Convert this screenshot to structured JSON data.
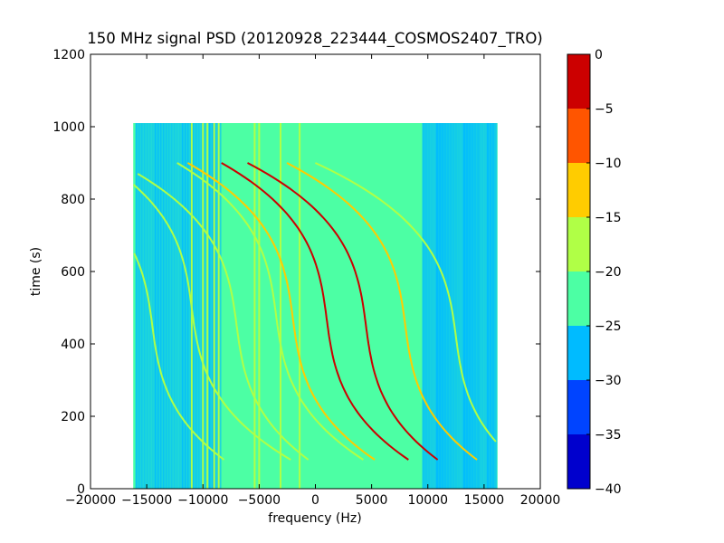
{
  "chart_data": {
    "type": "heatmap",
    "title": "150 MHz signal PSD (20120928_223444_COSMOS2407_TRO)",
    "xlabel": "frequency (Hz)",
    "ylabel": "time (s)",
    "xlim": [
      -20000,
      20000
    ],
    "ylim": [
      0,
      1200
    ],
    "xticks": [
      -20000,
      -15000,
      -10000,
      -5000,
      0,
      5000,
      10000,
      15000,
      20000
    ],
    "xtick_labels": [
      "−20000",
      "−15000",
      "−10000",
      "−5000",
      "0",
      "5000",
      "10000",
      "15000",
      "20000"
    ],
    "yticks": [
      0,
      200,
      400,
      600,
      800,
      1000,
      1200
    ],
    "ytick_labels": [
      "0",
      "200",
      "400",
      "600",
      "800",
      "1000",
      "1200"
    ],
    "data_extent": {
      "freq": [
        -16200,
        16200
      ],
      "time": [
        0,
        1010
      ]
    },
    "background_level": -22.5,
    "colorbar": {
      "levels": [
        -40,
        -35,
        -30,
        -25,
        -20,
        -15,
        -10,
        -5,
        0
      ],
      "tick_labels": [
        "−40",
        "−35",
        "−30",
        "−25",
        "−20",
        "−15",
        "−10",
        "−5",
        "0"
      ],
      "colors": [
        "#0000cd",
        "#0044ff",
        "#00bbff",
        "#4cffa4",
        "#b0ff46",
        "#ffcc00",
        "#ff5500",
        "#cc0000"
      ]
    },
    "noise_bands": [
      {
        "freq": [
          -16000,
          -8500
        ],
        "level": -27.5
      },
      {
        "freq": [
          9500,
          14500
        ],
        "level": -27.5
      },
      {
        "freq": [
          14500,
          16000
        ],
        "level": -27.5
      }
    ],
    "vertical_lines": [
      {
        "freq": -11000,
        "level": -17.5
      },
      {
        "freq": -10000,
        "level": -17.5
      },
      {
        "freq": -9600,
        "level": -17.5
      },
      {
        "freq": -9000,
        "level": -17.5
      },
      {
        "freq": -8600,
        "level": -17.5
      },
      {
        "freq": -5400,
        "level": -17.5
      },
      {
        "freq": -5000,
        "level": -17.5
      },
      {
        "freq": -3100,
        "level": -17.5
      },
      {
        "freq": -1400,
        "level": -17.5
      }
    ],
    "tracks": [
      {
        "center_freq": -14500,
        "center_time": 450,
        "level": -17.5
      },
      {
        "center_freq": -11000,
        "center_time": 500,
        "level": -17.5
      },
      {
        "center_freq": -7000,
        "center_time": 450,
        "level": -17.5
      },
      {
        "center_freq": -3500,
        "center_time": 480,
        "level": -17.5
      },
      {
        "center_freq": -2000,
        "center_time": 470,
        "level": -12.5
      },
      {
        "center_freq": 1000,
        "center_time": 470,
        "level": -2.5
      },
      {
        "center_freq": 4500,
        "center_time": 450,
        "level": -2.5
      },
      {
        "center_freq": 8000,
        "center_time": 450,
        "level": -12.5
      },
      {
        "center_freq": 12500,
        "center_time": 420,
        "level": -17.5
      }
    ]
  }
}
